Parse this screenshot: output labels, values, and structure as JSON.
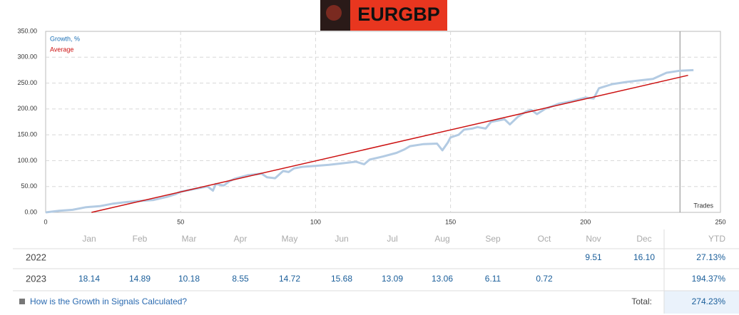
{
  "chart_data": {
    "type": "line",
    "title": "EURGBP",
    "x_label": "Trades",
    "xlim": [
      0,
      250
    ],
    "ylim": [
      0,
      350
    ],
    "xticks": [
      0,
      50,
      100,
      150,
      200,
      250
    ],
    "yticks": [
      {
        "value": 0,
        "label": "0.00"
      },
      {
        "value": 50,
        "label": "50.00"
      },
      {
        "value": 100,
        "label": "100.00"
      },
      {
        "value": 150,
        "label": "150.00"
      },
      {
        "value": 200,
        "label": "200.00"
      },
      {
        "value": 250,
        "label": "250.00"
      },
      {
        "value": 300,
        "label": "300.00"
      },
      {
        "value": 350,
        "label": "350.00"
      }
    ],
    "grid": true,
    "vline_x": 235,
    "series": [
      {
        "name": "Growth, %",
        "color": "#b3cbe3",
        "x": [
          0,
          5,
          10,
          15,
          20,
          25,
          30,
          35,
          40,
          45,
          48,
          50,
          55,
          60,
          62,
          63,
          66,
          68,
          70,
          75,
          80,
          82,
          85,
          88,
          90,
          92,
          95,
          100,
          105,
          110,
          115,
          118,
          120,
          125,
          130,
          133,
          135,
          140,
          145,
          147,
          149,
          150,
          153,
          155,
          158,
          160,
          163,
          165,
          170,
          172,
          175,
          178,
          180,
          182,
          185,
          190,
          195,
          200,
          203,
          205,
          210,
          215,
          220,
          225,
          230,
          235,
          240
        ],
        "values": [
          0,
          3,
          5,
          10,
          12,
          17,
          20,
          22,
          24,
          30,
          35,
          40,
          45,
          50,
          42,
          55,
          52,
          60,
          65,
          72,
          75,
          68,
          66,
          80,
          78,
          85,
          88,
          90,
          92,
          95,
          98,
          93,
          102,
          108,
          115,
          122,
          128,
          132,
          133,
          120,
          135,
          145,
          150,
          160,
          162,
          165,
          162,
          175,
          180,
          170,
          185,
          195,
          198,
          190,
          200,
          210,
          215,
          222,
          220,
          240,
          248,
          252,
          255,
          258,
          270,
          274,
          275
        ]
      },
      {
        "name": "Average",
        "color": "#cc1111",
        "x": [
          17,
          238
        ],
        "values": [
          0,
          265
        ]
      }
    ]
  },
  "table": {
    "columns": [
      "Jan",
      "Feb",
      "Mar",
      "Apr",
      "May",
      "Jun",
      "Jul",
      "Aug",
      "Sep",
      "Oct",
      "Nov",
      "Dec",
      "YTD"
    ],
    "rows": [
      {
        "label": "2022",
        "cells": [
          null,
          null,
          null,
          null,
          null,
          null,
          null,
          null,
          null,
          null,
          "9.51",
          "16.10"
        ],
        "ytd": "27.13%"
      },
      {
        "label": "2023",
        "cells": [
          "18.14",
          "14.89",
          "10.18",
          "8.55",
          "14.72",
          "15.68",
          "13.09",
          "13.06",
          "6.11",
          "0.72",
          null,
          null
        ],
        "ytd": "194.37%"
      }
    ]
  },
  "footer": {
    "link": "How is the Growth in Signals Calculated?",
    "total_label": "Total:",
    "total": "274.23%"
  }
}
